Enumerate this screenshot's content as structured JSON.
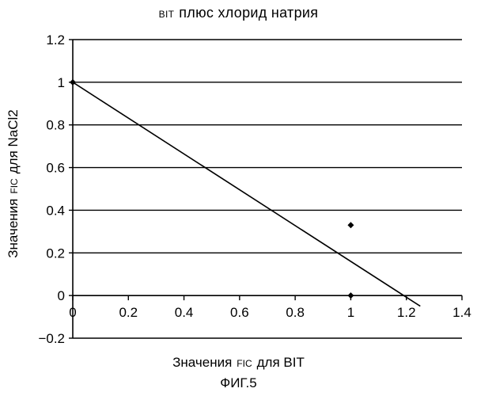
{
  "title_prefix": "BIT",
  "title_main": "плюс хлорид натрия",
  "caption": "ФИГ.5",
  "chart_data": {
    "type": "scatter",
    "title": "BIT плюс хлорид натрия",
    "xlabel": {
      "main": "Значения",
      "small": "FIC",
      "rest": "для BIT"
    },
    "ylabel": {
      "main": "Значения",
      "small": "FIC",
      "rest": "для NaCl2"
    },
    "xlim": [
      0,
      1.4
    ],
    "ylim": [
      -0.2,
      1.2
    ],
    "x_ticks": [
      "0",
      "0.2",
      "0.4",
      "0.6",
      "0.8",
      "1",
      "1.2",
      "1.4"
    ],
    "y_ticks": [
      "-0.2",
      "0",
      "0.2",
      "0.4",
      "0.6",
      "0.8",
      "1",
      "1.2"
    ],
    "grid": "horizontal",
    "points": [
      {
        "x": 0,
        "y": 1
      },
      {
        "x": 1,
        "y": 0.33
      },
      {
        "x": 1,
        "y": 0
      }
    ],
    "reference_line": {
      "x1": 0,
      "y1": 1,
      "x2": 1.25,
      "y2": -0.05
    }
  }
}
